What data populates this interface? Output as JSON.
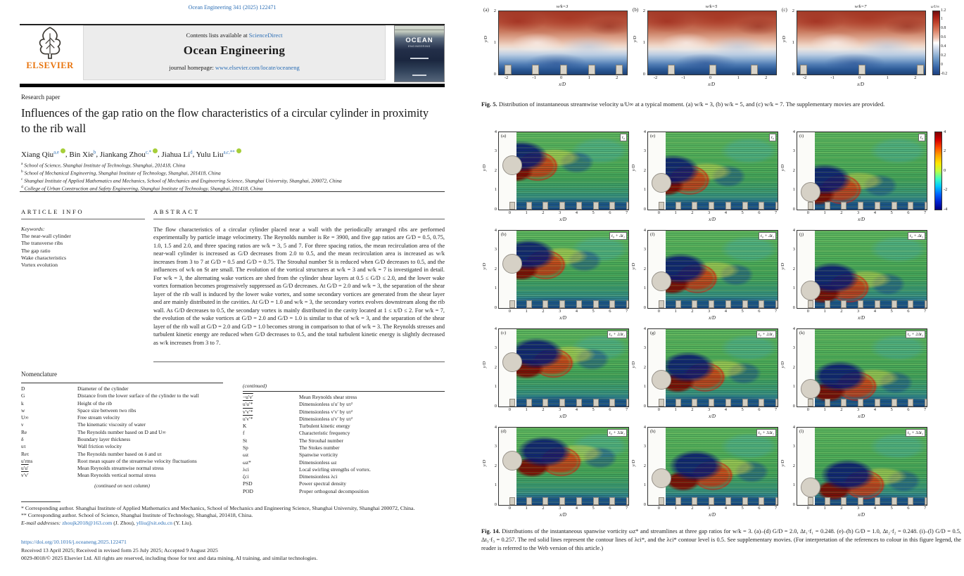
{
  "journal": {
    "citation": "Ocean Engineering 341 (2025) 122471",
    "contents_prefix": "Contents lists available at",
    "contents_link": "ScienceDirect",
    "name": "Ocean Engineering",
    "homepage_prefix": "journal homepage:",
    "homepage_link": "www.elsevier.com/locate/oceaneng",
    "publisher_logo_text": "ELSEVIER",
    "cover_title": "OCEAN",
    "cover_subtitle": "ENGINEERING"
  },
  "article": {
    "type_label": "Research paper",
    "title": "Influences of the gap ratio on the flow characteristics of a circular cylinder in proximity to the rib wall",
    "authors": [
      {
        "name": "Xiang Qiu",
        "sup": "a,e",
        "orcid": true
      },
      {
        "name": "Bin Xie",
        "sup": "b",
        "orcid": false
      },
      {
        "name": "Jiankang Zhou",
        "sup": "c,*",
        "orcid": true
      },
      {
        "name": "Jiahua Li",
        "sup": "d",
        "orcid": false
      },
      {
        "name": "Yulu Liu",
        "sup": "a,c,**",
        "orcid": true
      }
    ],
    "affiliations": [
      {
        "sup": "a",
        "text": "School of Science, Shanghai Institute of Technology, Shanghai, 201418, China"
      },
      {
        "sup": "b",
        "text": "School of Mechanical Engineering, Shanghai Institute of Technology, Shanghai, 201418, China"
      },
      {
        "sup": "c",
        "text": "Shanghai Institute of Applied Mathematics and Mechanics, School of Mechanics and Engineering Science, Shanghai University, Shanghai, 200072, China"
      },
      {
        "sup": "d",
        "text": "College of Urban Construction and Safety Engineering, Shanghai Institute of Technology, Shanghai, 201418, China"
      }
    ]
  },
  "article_info": {
    "heading": "ARTICLE INFO",
    "keywords_label": "Keywords:",
    "keywords": [
      "The near-wall cylinder",
      "The transverse ribs",
      "The gap ratio",
      "Wake characteristics",
      "Vortex evolution"
    ]
  },
  "abstract": {
    "heading": "ABSTRACT",
    "text": "The flow characteristics of a circular cylinder placed near a wall with the periodically arranged ribs are performed experimentally by particle image velocimetry. The Reynolds number is Re = 3900, and five gap ratios are G/D = 0.5, 0.75, 1.0, 1.5 and 2.0, and three spacing ratios are w/k = 3, 5 and 7. For three spacing ratios, the mean recirculation area of the near-wall cylinder is increased as G/D decreases from 2.0 to 0.5, and the mean recirculation area is increased as w/k increases from 3 to 7 at G/D = 0.5 and G/D = 0.75. The Strouhal number St is reduced when G/D decreases to 0.5, and the influences of w/k on St are small. The evolution of the vortical structures at w/k = 3 and w/k = 7 is investigated in detail. For w/k = 3, the alternating wake vortices are shed from the cylinder shear layers at 0.5 ≤ G/D ≤ 2.0, and the lower wake vortex formation becomes progressively suppressed as G/D decreases. At G/D = 2.0 and w/k = 3, the separation of the shear layer of the rib wall is induced by the lower wake vortex, and some secondary vortices are generated from the shear layer and are mainly distributed in the cavities. At G/D = 1.0 and w/k = 3, the secondary vortex evolves downstream along the rib wall. As G/D decreases to 0.5, the secondary vortex is mainly distributed in the cavity located at 1 ≤ x/D ≤ 2. For w/k = 7, the evolution of the wake vortices at G/D = 2.0 and G/D = 1.0 is similar to that of w/k = 3, and the separation of the shear layer of the rib wall at G/D = 2.0 and G/D = 1.0 becomes strong in comparison to that of w/k = 3. The Reynolds stresses and turbulent kinetic energy are reduced when G/D decreases to 0.5, and the total turbulent kinetic energy is slightly decreased as w/k increases from 3 to 7."
  },
  "nomenclature": {
    "title": "Nomenclature",
    "continued_heading": "(continued)",
    "continued_note": "(continued on next column)",
    "left": [
      {
        "symbol": "D",
        "definition": "Diameter of the cylinder",
        "overline": false
      },
      {
        "symbol": "G",
        "definition": "Distance from the lower surface of the cylinder to the wall",
        "overline": false
      },
      {
        "symbol": "k",
        "definition": "Height of the rib",
        "overline": false
      },
      {
        "symbol": "w",
        "definition": "Space size between two ribs",
        "overline": false
      },
      {
        "symbol": "U∞",
        "definition": "Free stream velocity",
        "overline": false
      },
      {
        "symbol": "ν",
        "definition": "The kinematic viscosity of water",
        "overline": false
      },
      {
        "symbol": "Re",
        "definition": "The Reynolds number based on D and U∞",
        "overline": false
      },
      {
        "symbol": "δ",
        "definition": "Boundary layer thickness",
        "overline": false
      },
      {
        "symbol": "uτ",
        "definition": "Wall friction velocity",
        "overline": false
      },
      {
        "symbol": "Reτ",
        "definition": "The Reynolds number based on δ and uτ",
        "overline": false
      },
      {
        "symbol": "u′rms",
        "definition": "Root mean square of the streamwise velocity fluctuations",
        "overline": false
      },
      {
        "symbol": "u′u′",
        "definition": "Mean Reynolds streamwise normal stress",
        "overline": true
      },
      {
        "symbol": "v′v′",
        "definition": "Mean Reynolds vertical normal stress",
        "overline": true
      }
    ],
    "right": [
      {
        "symbol": "−u′v′",
        "definition": "Mean Reynolds shear stress",
        "overline": true
      },
      {
        "symbol": "u′u′*",
        "definition": "Dimensionless u′u′ by uτ²",
        "overline": true
      },
      {
        "symbol": "v′v′*",
        "definition": "Dimensionless v′v′ by uτ²",
        "overline": true
      },
      {
        "symbol": "u′v′*",
        "definition": "Dimensionless u′v′ by uτ²",
        "overline": true
      },
      {
        "symbol": "K",
        "definition": "Turbulent kinetic energy",
        "overline": false
      },
      {
        "symbol": "f",
        "definition": "Characteristic frequency",
        "overline": false
      },
      {
        "symbol": "St",
        "definition": "The Strouhal number",
        "overline": false
      },
      {
        "symbol": "Sp",
        "definition": "The Stokes number",
        "overline": false
      },
      {
        "symbol": "ωz",
        "definition": "Spanwise vorticity",
        "overline": false
      },
      {
        "symbol": "ωz*",
        "definition": "Dimensionless ωz",
        "overline": false
      },
      {
        "symbol": "λci",
        "definition": "Local swirling strengths of vortex.",
        "overline": false
      },
      {
        "symbol": "ζci",
        "definition": "Dimensionless λci",
        "overline": false
      },
      {
        "symbol": "PSD",
        "definition": "Power spectral density",
        "overline": false
      },
      {
        "symbol": "POD",
        "definition": "Proper orthogonal decomposition",
        "overline": false
      }
    ]
  },
  "footnotes": {
    "star": "* Corresponding author. Shanghai Institute of Applied Mathematics and Mechanics, School of Mechanics and Engineering Science, Shanghai University, Shanghai 200072, China.",
    "dstar": "** Corresponding author. School of Science, Shanghai Institute of Technology, Shanghai, 201418, China.",
    "email_label": "E-mail addresses:",
    "email1": "zhoujk2018@163.com",
    "email1_suffix": " (J. Zhou), ",
    "email2": "ylliu@sit.edu.cn",
    "email2_suffix": " (Y. Liu)."
  },
  "imprint": {
    "doi": "https://doi.org/10.1016/j.oceaneng.2025.122471",
    "received": "Received 13 April 2025; Received in revised form 25 July 2025; Accepted 9 August 2025",
    "copyright": "0029-8018/© 2025 Elsevier Ltd. All rights are reserved, including those for text and data mining, AI training, and similar technologies."
  },
  "fig5": {
    "caption_label": "Fig. 5.",
    "caption_text": "Distribution of instantaneous streamwise velocity u/U∞ at a typical moment. (a) w/k = 3, (b) w/k = 5, and (c) w/k = 7. The supplementary movies are provided.",
    "xlabel": "x/D",
    "ylabel": "y/D",
    "x_ticks": [
      -2,
      -1,
      0,
      1,
      2
    ],
    "y_ticks": [
      2,
      1,
      0
    ],
    "x_range": [
      -2.3,
      2.3
    ],
    "colorbar": {
      "label": "u/U∞",
      "ticks": [
        1.2,
        1,
        0.8,
        0.6,
        0.4,
        0.2,
        0,
        -0.2
      ]
    },
    "panels": [
      {
        "label": "(a)",
        "title": "w/k=3",
        "ribs_x": [
          -2,
          -1,
          0,
          1,
          2
        ]
      },
      {
        "label": "(b)",
        "title": "w/k=5",
        "ribs_x": [
          -1.5,
          0,
          1.5
        ]
      },
      {
        "label": "(c)",
        "title": "w/k=7",
        "ribs_x": [
          -2.1,
          0,
          2.1
        ]
      }
    ]
  },
  "fig14": {
    "caption_label": "Fig. 14.",
    "caption_text": "Distributions of the instantaneous spanwise vorticity ωz* and streamlines at three gap ratios for w/k = 3. (a)–(d) G/D = 2.0, Δt₁·f₁ = 0.248. (e)–(h) G/D = 1.0, Δt₂·f₂ = 0.248. (i)–(l) G/D = 0.5, Δt₃·f₃ = 0.257. The red solid lines represent the contour lines of λci*, and the λci* contour level is 0.5. See supplementary movies. (For interpretation of the references to colour in this figure legend, the reader is referred to the Web version of this article.)",
    "xlabel": "x/D",
    "ylabel": "y/D",
    "x_ticks": [
      0,
      1,
      2,
      3,
      4,
      5,
      6,
      7
    ],
    "y_ticks": [
      4,
      3,
      2,
      1,
      0
    ],
    "x_range": [
      -0.75,
      7
    ],
    "y_range": [
      0,
      4.3
    ],
    "colorbar": {
      "ticks": [
        4,
        2,
        0,
        -2,
        -4
      ]
    },
    "columns": [
      {
        "gap_ratio": "G/D = 2.0",
        "cylinder_y": 2.5
      },
      {
        "gap_ratio": "G/D = 1.0",
        "cylinder_y": 1.5
      },
      {
        "gap_ratio": "G/D = 0.5",
        "cylinder_y": 1.0
      }
    ],
    "panels": [
      {
        "label": "(a)",
        "tag": "t₀",
        "col": 0,
        "row": 0
      },
      {
        "label": "(e)",
        "tag": "t₀",
        "col": 1,
        "row": 0
      },
      {
        "label": "(i)",
        "tag": "t₀",
        "col": 2,
        "row": 0
      },
      {
        "label": "(b)",
        "tag": "t₀ + Δt₁",
        "col": 0,
        "row": 1
      },
      {
        "label": "(f)",
        "tag": "t₀ + Δt₂",
        "col": 1,
        "row": 1
      },
      {
        "label": "(j)",
        "tag": "t₀ + Δt₃",
        "col": 2,
        "row": 1
      },
      {
        "label": "(c)",
        "tag": "t₀ + 2Δt₁",
        "col": 0,
        "row": 2
      },
      {
        "label": "(g)",
        "tag": "t₀ + 2Δt₂",
        "col": 1,
        "row": 2
      },
      {
        "label": "(k)",
        "tag": "t₀ + 2Δt₃",
        "col": 2,
        "row": 2
      },
      {
        "label": "(d)",
        "tag": "t₀ + 3Δt₁",
        "col": 0,
        "row": 3
      },
      {
        "label": "(h)",
        "tag": "t₀ + 3Δt₂",
        "col": 1,
        "row": 3
      },
      {
        "label": "(l)",
        "tag": "t₀ + 3Δt₃",
        "col": 2,
        "row": 3
      }
    ]
  }
}
